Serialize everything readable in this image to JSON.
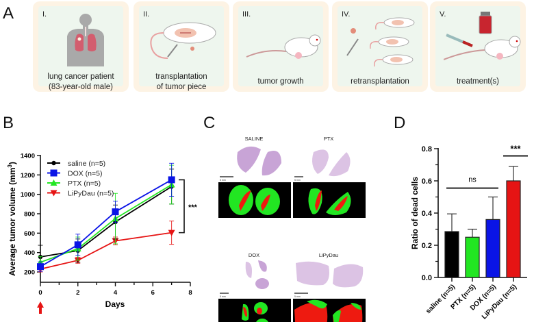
{
  "panels": {
    "a": {
      "letter": "A",
      "steps": [
        {
          "num": "I.",
          "caption_lines": [
            "lung cancer patient",
            "(83-year-old male)"
          ],
          "icon": "human-lungs-icon"
        },
        {
          "num": "II.",
          "caption_lines": [
            "transplantation",
            "of tumor piece"
          ],
          "icon": "mouse-surgery-icon"
        },
        {
          "num": "III.",
          "caption_lines": [
            "tumor growth"
          ],
          "icon": "mouse-tumor-icon"
        },
        {
          "num": "IV.",
          "caption_lines": [
            "retransplantation"
          ],
          "icon": "mice-retransplant-icon"
        },
        {
          "num": "V.",
          "caption_lines": [
            "treatment(s)"
          ],
          "icon": "syringe-vial-mouse-icon"
        }
      ]
    },
    "b": {
      "letter": "B",
      "significance": "***",
      "arrow_icon": "treatment-arrow-icon"
    },
    "c": {
      "letter": "C",
      "labels": [
        "SALINE",
        "PTX",
        "DOX",
        "LiPyDau"
      ],
      "scale_bar": "5 mm"
    },
    "d": {
      "letter": "D",
      "ns_label": "ns",
      "significance": "***"
    }
  },
  "colors": {
    "saline": "#000000",
    "DOX": "#0a14e6",
    "PTX": "#22e622",
    "LiPyDau": "#e61414",
    "card_outer": "#fdf3e4",
    "card_inner": "#eef6ee"
  },
  "chart_data": [
    {
      "type": "line",
      "title": "",
      "xlabel": "Days",
      "ylabel": "Average tumor volume (mm³)",
      "ylabel_base": "Average tumor volume (mm",
      "ylabel_sup": "3",
      "ylabel_end": ")",
      "xlim": [
        0,
        8
      ],
      "ylim": [
        100,
        1400
      ],
      "xticks": [
        0,
        2,
        4,
        6,
        8
      ],
      "yticks": [
        200,
        400,
        600,
        800,
        1000,
        1200,
        1400
      ],
      "legend_position": "top-left",
      "x": [
        0,
        2,
        4,
        7
      ],
      "series": [
        {
          "name": "saline (n=5)",
          "key": "saline",
          "marker": "circle",
          "values": [
            355,
            420,
            715,
            1080
          ],
          "errors": [
            120,
            120,
            175,
            180
          ]
        },
        {
          "name": "DOX (n=5)",
          "key": "DOX",
          "marker": "square",
          "values": [
            255,
            480,
            820,
            1150
          ],
          "errors": [
            50,
            110,
            110,
            170
          ]
        },
        {
          "name": "PTX (n=5)",
          "key": "PTX",
          "marker": "triangle-up",
          "values": [
            300,
            440,
            750,
            1100
          ],
          "errors": [
            60,
            120,
            260,
            200
          ]
        },
        {
          "name": "LiPyDau (n=5)",
          "key": "LiPyDau",
          "marker": "triangle-down",
          "values": [
            230,
            320,
            520,
            605
          ],
          "errors": [
            30,
            30,
            40,
            120
          ]
        }
      ]
    },
    {
      "type": "bar",
      "title": "",
      "xlabel": "",
      "ylabel": "Ratio of dead cells",
      "ylim": [
        0,
        0.8
      ],
      "yticks": [
        0.0,
        0.2,
        0.4,
        0.6,
        0.8
      ],
      "ytick_labels": [
        "0.0",
        "0.2",
        "0.4",
        "0.6",
        "0.8"
      ],
      "categories": [
        "saline (n=5)",
        "PTX (n=5)",
        "DOX (n=5)",
        "LiPyDau (n=5)"
      ],
      "keys": [
        "saline",
        "PTX",
        "DOX",
        "LiPyDau"
      ],
      "values": [
        0.285,
        0.25,
        0.36,
        0.6
      ],
      "errors": [
        0.11,
        0.05,
        0.14,
        0.09
      ]
    }
  ]
}
